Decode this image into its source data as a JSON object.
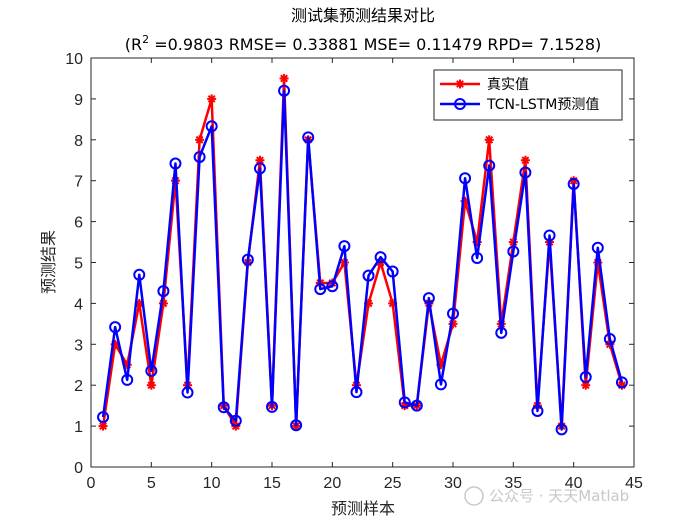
{
  "chart_data": {
    "type": "line",
    "title": "测试集预测结果对比",
    "subtitle": {
      "prefix": "(R",
      "sup": "2",
      "rest": " =0.9803 RMSE= 0.33881 MSE= 0.11479 RPD= 7.1528)"
    },
    "xlabel": "预测样本",
    "ylabel": "预测结果",
    "xlim": [
      0,
      45
    ],
    "ylim": [
      0,
      10
    ],
    "xticks": [
      0,
      5,
      10,
      15,
      20,
      25,
      30,
      35,
      40,
      45
    ],
    "yticks": [
      0,
      1,
      2,
      3,
      4,
      5,
      6,
      7,
      8,
      9,
      10
    ],
    "x": [
      1,
      2,
      3,
      4,
      5,
      6,
      7,
      8,
      9,
      10,
      11,
      12,
      13,
      14,
      15,
      16,
      17,
      18,
      19,
      20,
      21,
      22,
      23,
      24,
      25,
      26,
      27,
      28,
      29,
      30,
      31,
      32,
      33,
      34,
      35,
      36,
      37,
      38,
      39,
      40,
      41,
      42,
      43,
      44
    ],
    "series": [
      {
        "name": "真实值",
        "color": "#ff0000",
        "marker": "asterisk",
        "values": [
          1,
          3,
          2.5,
          4,
          2,
          4,
          7,
          2,
          8,
          9,
          1.5,
          1,
          5,
          7.5,
          1.5,
          9.5,
          1,
          8,
          4.5,
          4.5,
          5,
          2,
          4,
          5,
          4,
          1.5,
          1.5,
          4,
          2.5,
          3.5,
          6.5,
          5.5,
          8,
          3.5,
          5.5,
          7.5,
          1.5,
          5.5,
          1,
          7,
          2,
          5,
          3,
          2
        ]
      },
      {
        "name": "TCN-LSTM预测值",
        "color": "#0000ff",
        "marker": "circle",
        "values": [
          1.22,
          3.42,
          2.13,
          4.7,
          2.35,
          4.3,
          7.42,
          1.82,
          7.58,
          8.33,
          1.46,
          1.13,
          5.07,
          7.3,
          1.47,
          9.2,
          1.02,
          8.06,
          4.35,
          4.42,
          5.4,
          1.83,
          4.68,
          5.13,
          4.78,
          1.58,
          1.5,
          4.13,
          2.02,
          3.75,
          7.06,
          5.11,
          7.37,
          3.28,
          5.27,
          7.2,
          1.37,
          5.66,
          0.92,
          6.92,
          2.2,
          5.36,
          3.13,
          2.07
        ]
      }
    ],
    "legend_position": "top-right"
  },
  "watermark": "公众号 · 天天Matlab"
}
